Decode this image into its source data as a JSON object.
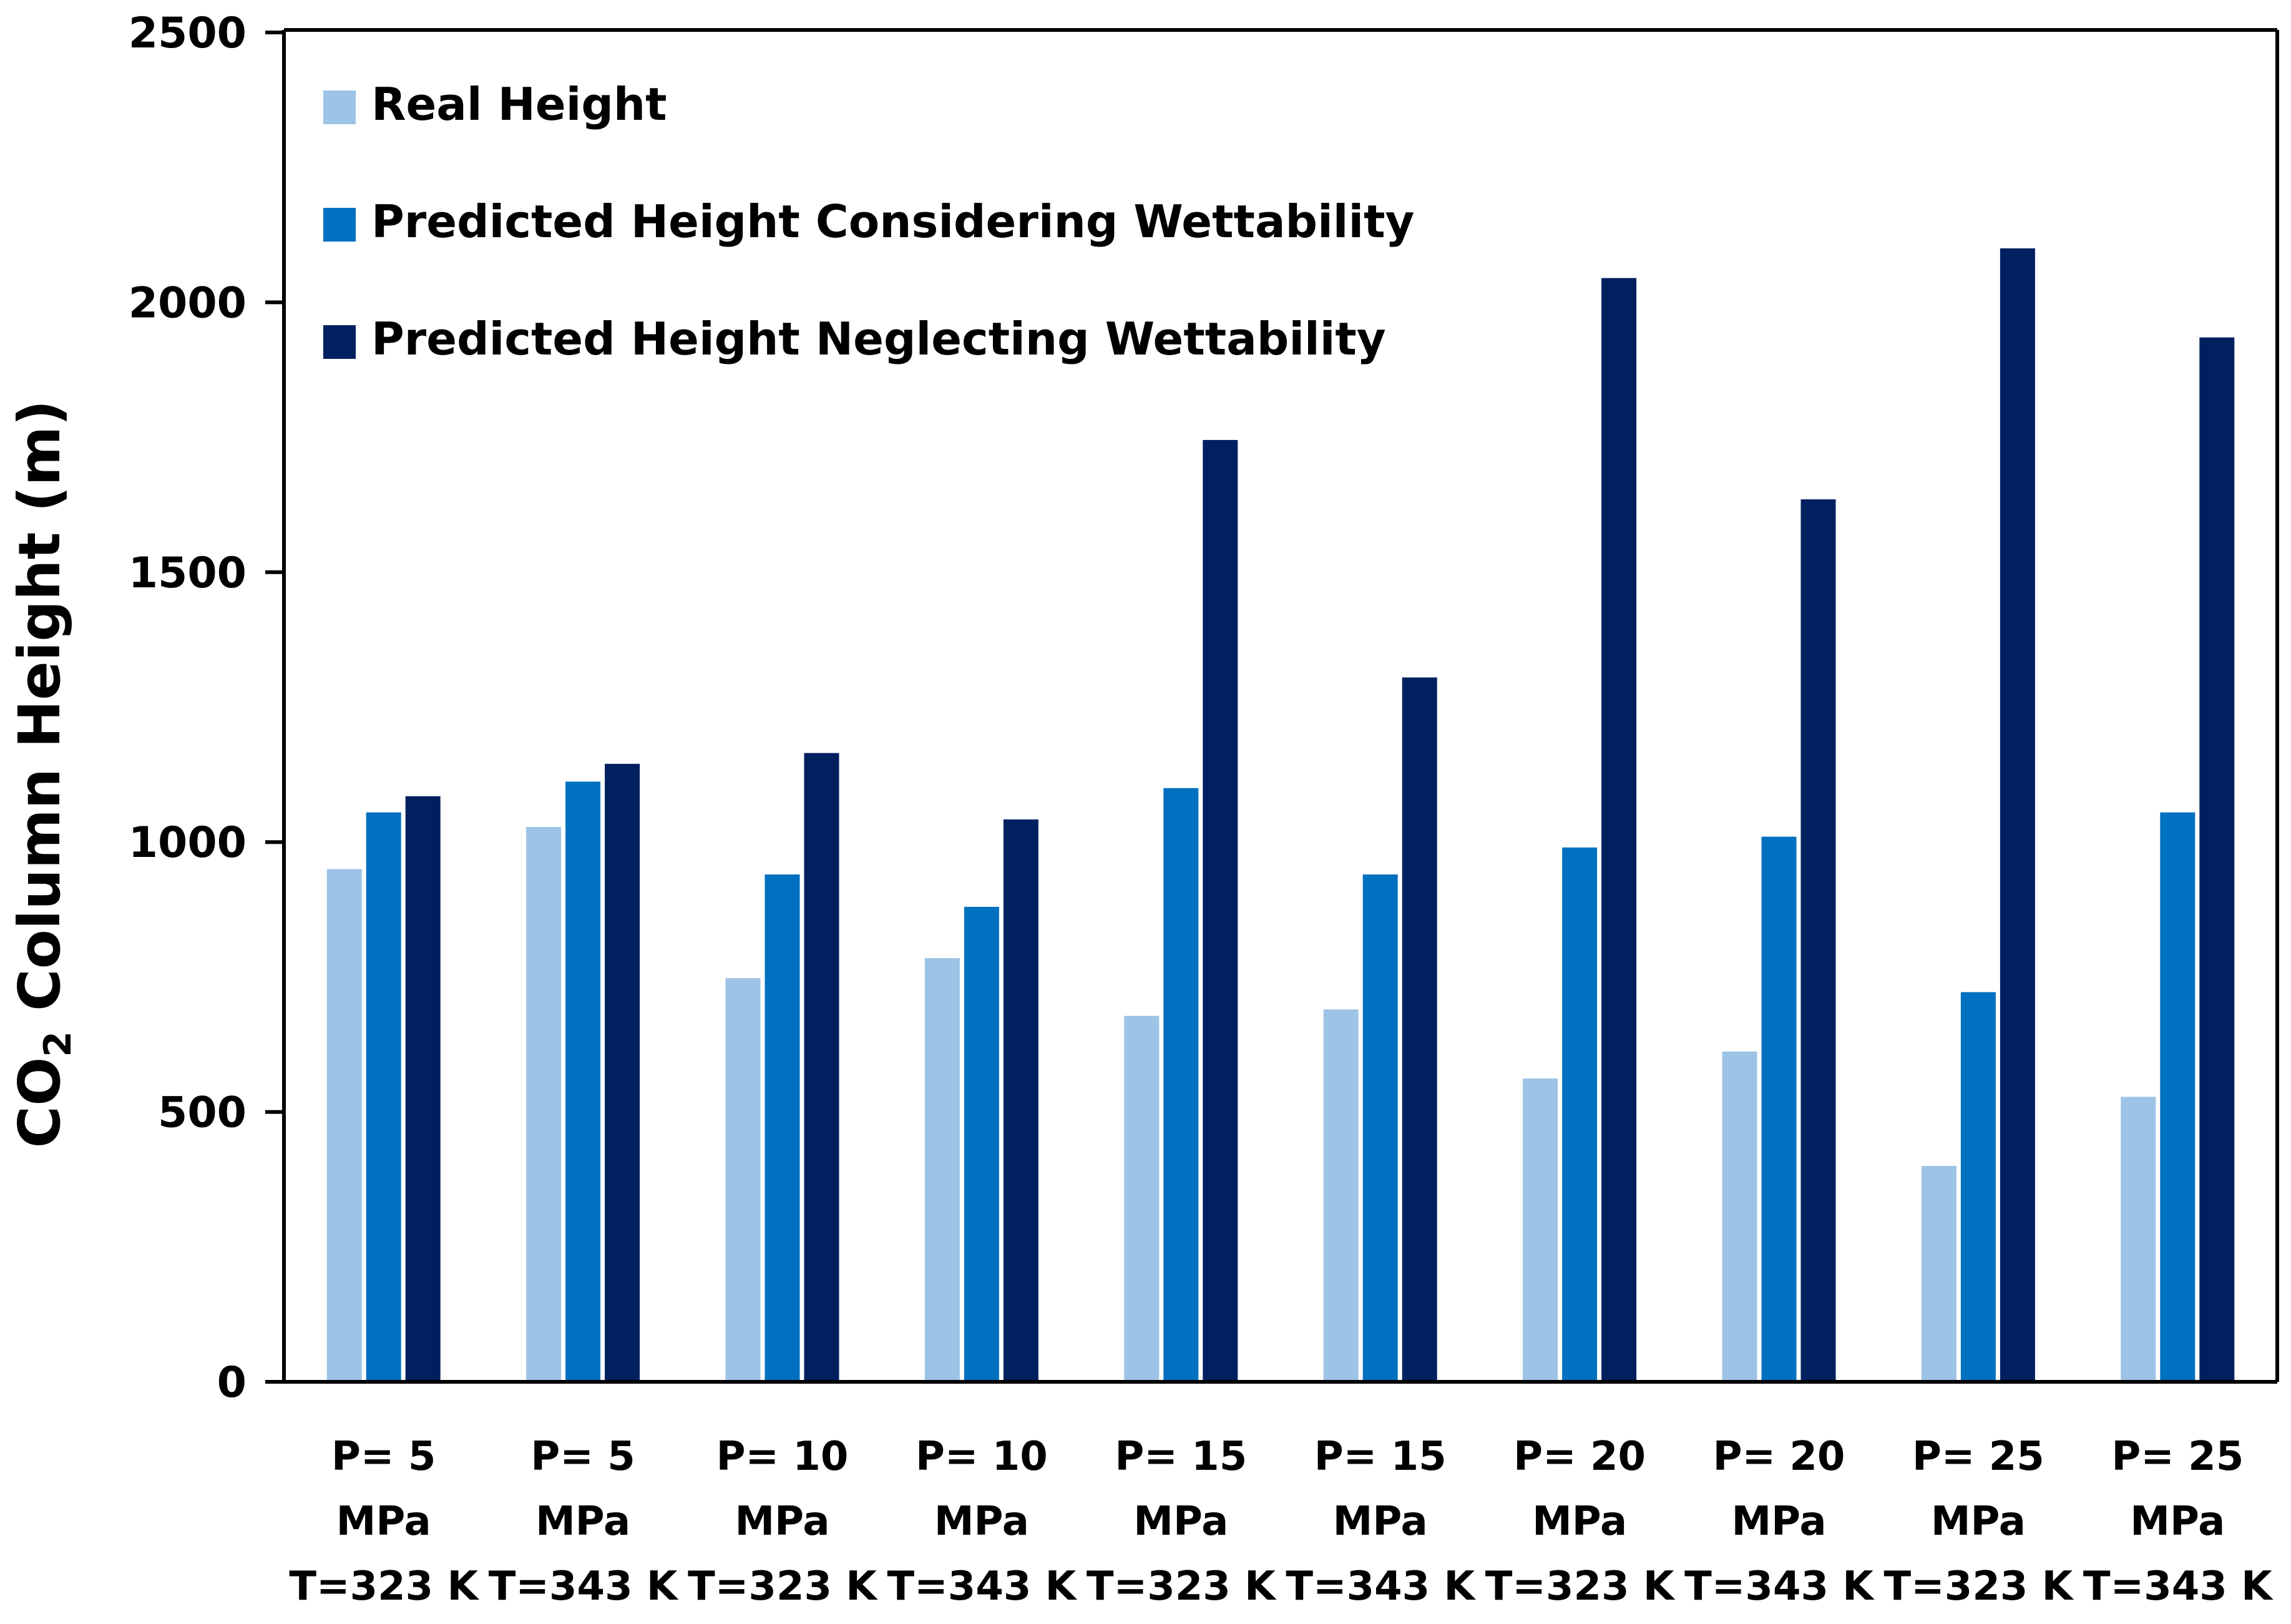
{
  "chart_data": {
    "type": "bar",
    "title": "",
    "ylabel": {
      "main": "CO",
      "sub": "2",
      "rest": " Column Height (m)"
    },
    "xlabel": "",
    "ylim": [
      0,
      2500
    ],
    "yticks": [
      "0",
      "500",
      "1000",
      "1500",
      "2000",
      "2500"
    ],
    "categories": [
      [
        "P= 5",
        "MPa",
        "T=323 K"
      ],
      [
        "P= 5",
        "MPa",
        "T=343 K"
      ],
      [
        "P= 10",
        "MPa",
        "T=323 K"
      ],
      [
        "P= 10",
        "MPa",
        "T=343 K"
      ],
      [
        "P= 15",
        "MPa",
        "T=323 K"
      ],
      [
        "P= 15",
        "MPa",
        "T=343 K"
      ],
      [
        "P= 20",
        "MPa",
        "T=323 K"
      ],
      [
        "P= 20",
        "MPa",
        "T=343 K"
      ],
      [
        "P= 25",
        "MPa",
        "T=323 K"
      ],
      [
        "P= 25",
        "MPa",
        "T=343 K"
      ]
    ],
    "series": [
      {
        "name": "Real Height",
        "color": "#9dc3e6",
        "values": [
          950,
          1028,
          748,
          785,
          678,
          690,
          562,
          612,
          400,
          528
        ]
      },
      {
        "name": "Predicted Height Considering Wettability",
        "color": "#0070c0",
        "values": [
          1055,
          1112,
          940,
          880,
          1100,
          940,
          990,
          1010,
          722,
          1055
        ]
      },
      {
        "name": "Predicted Height Neglecting Wettability",
        "color": "#002060",
        "values": [
          1085,
          1145,
          1165,
          1042,
          1745,
          1305,
          2045,
          1635,
          2100,
          1935
        ]
      }
    ],
    "legend_position": "top-left",
    "grid": false
  }
}
